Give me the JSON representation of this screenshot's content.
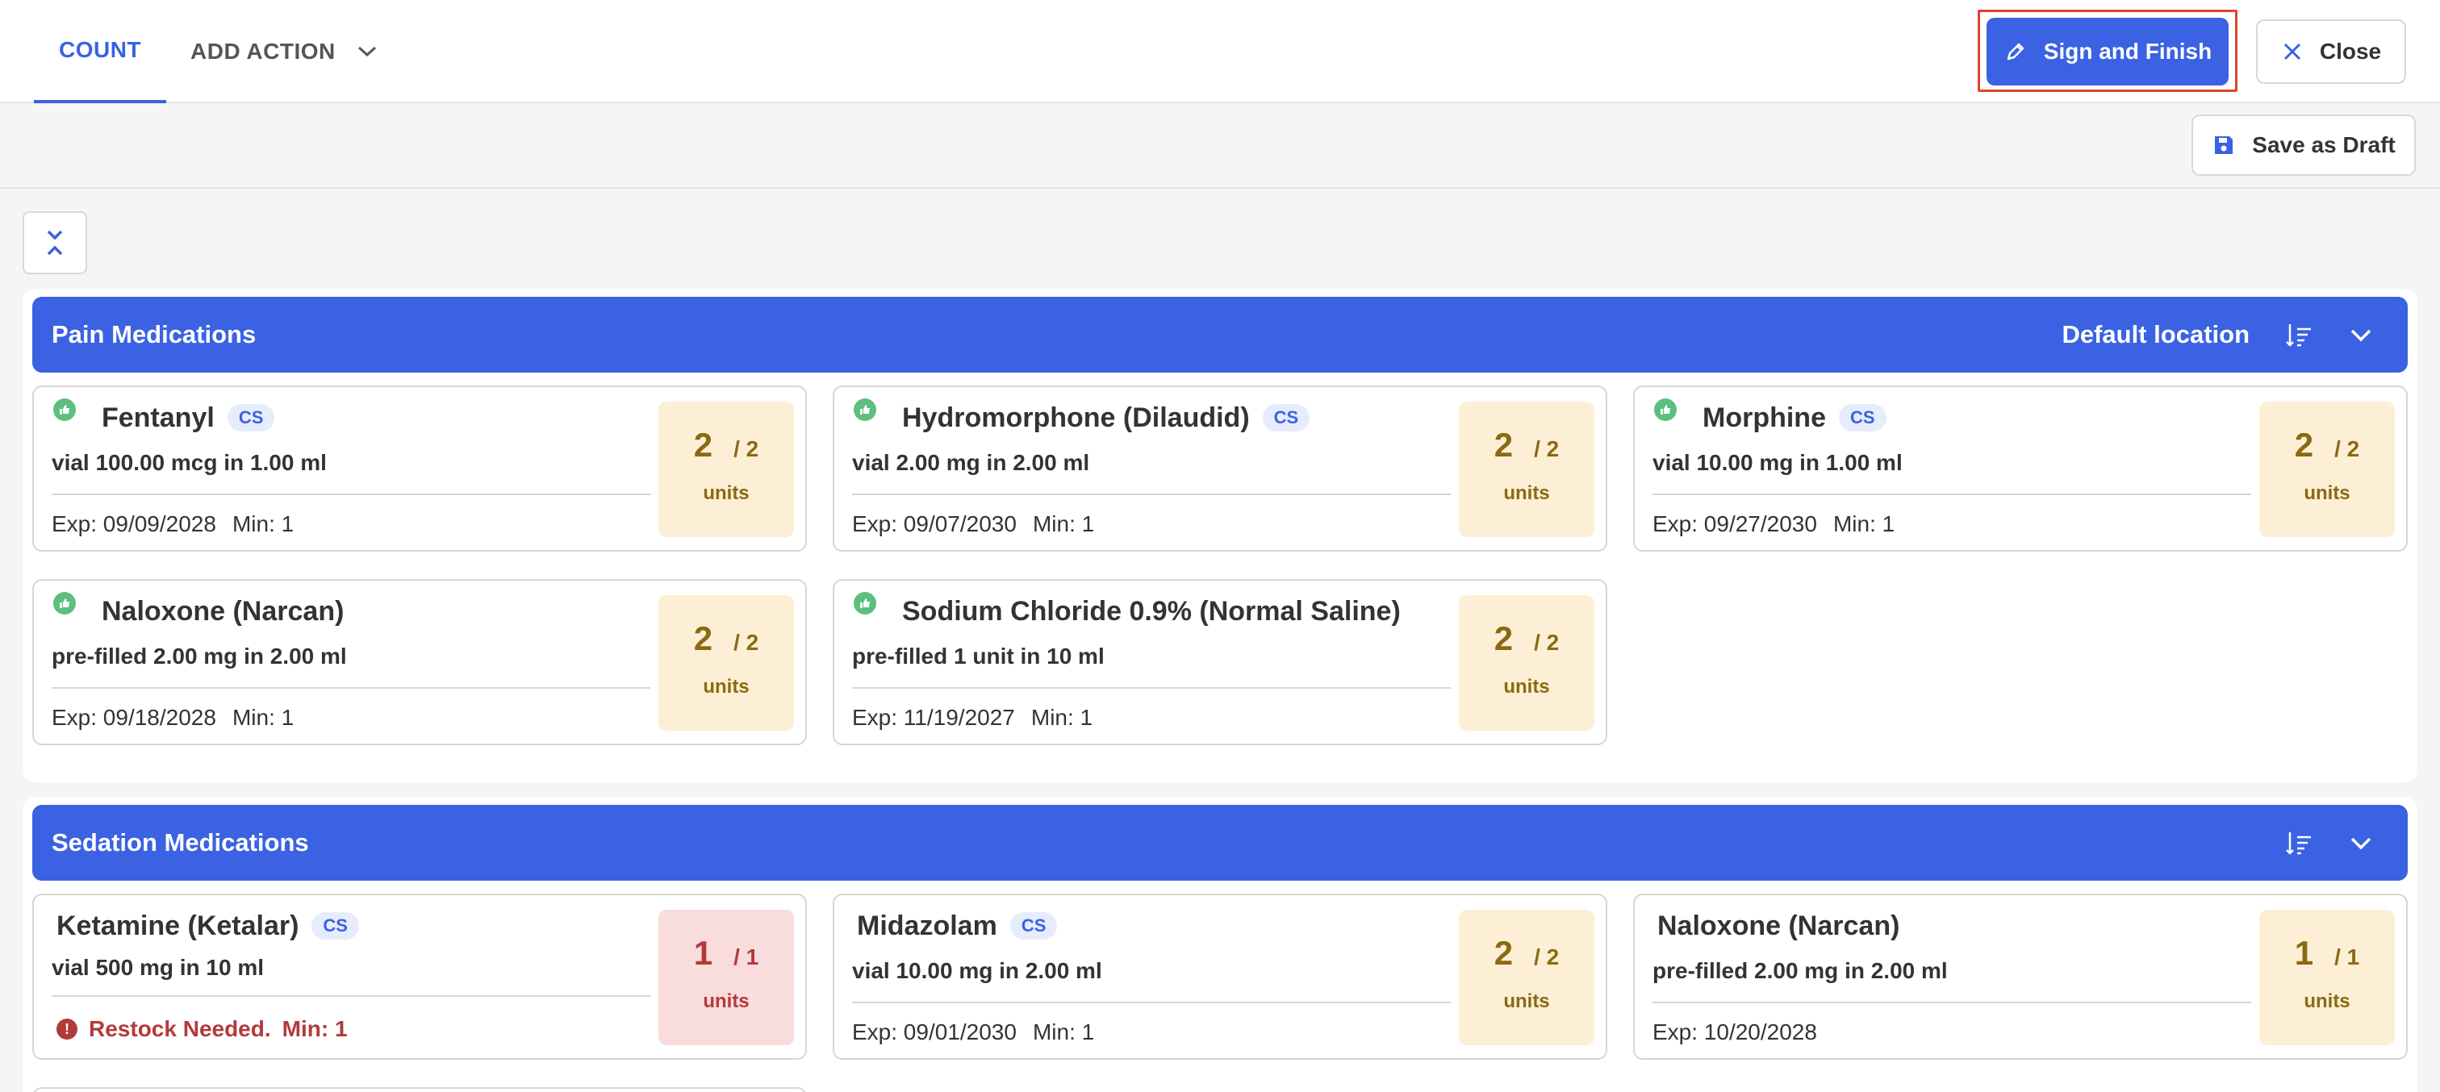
{
  "tabs": {
    "count": "COUNT",
    "add_action": "ADD ACTION"
  },
  "actions": {
    "sign_finish": "Sign and Finish",
    "close": "Close",
    "save_draft": "Save as Draft"
  },
  "colors": {
    "primary": "#3a62e2",
    "ok": "#5cbf7d",
    "low_stock": "#b33a3a",
    "highlight_outline": "#e0442c"
  },
  "sections": [
    {
      "title": "Pain Medications",
      "location": "Default location",
      "items": [
        {
          "name": "Fentanyl",
          "cs": "CS",
          "desc": "vial 100.00 mcg in 1.00 ml",
          "exp": "Exp: 09/09/2028",
          "min": "Min: 1",
          "count": "2",
          "total": "/ 2",
          "units": "units"
        },
        {
          "name": "Hydromorphone (Dilaudid)",
          "cs": "CS",
          "desc": "vial 2.00 mg in 2.00 ml",
          "exp": "Exp: 09/07/2030",
          "min": "Min: 1",
          "count": "2",
          "total": "/ 2",
          "units": "units"
        },
        {
          "name": "Morphine",
          "cs": "CS",
          "desc": "vial 10.00 mg in 1.00 ml",
          "exp": "Exp: 09/27/2030",
          "min": "Min: 1",
          "count": "2",
          "total": "/ 2",
          "units": "units"
        },
        {
          "name": "Naloxone (Narcan)",
          "desc": "pre-filled 2.00 mg in 2.00 ml",
          "exp": "Exp: 09/18/2028",
          "min": "Min: 1",
          "count": "2",
          "total": "/ 2",
          "units": "units"
        },
        {
          "name": "Sodium Chloride 0.9% (Normal Saline)",
          "desc": "pre-filled 1 unit in 10 ml",
          "exp": "Exp: 11/19/2027",
          "min": "Min: 1",
          "count": "2",
          "total": "/ 2",
          "units": "units"
        }
      ]
    },
    {
      "title": "Sedation Medications",
      "items": [
        {
          "name": "Ketamine (Ketalar)",
          "cs": "CS",
          "desc": "vial 500 mg in 10 ml",
          "restock": "Restock Needed.",
          "min": "Min: 1",
          "count": "1",
          "total": "/ 1",
          "units": "units"
        },
        {
          "name": "Midazolam",
          "cs": "CS",
          "desc": "vial 10.00 mg in 2.00 ml",
          "exp": "Exp: 09/01/2030",
          "min": "Min: 1",
          "count": "2",
          "total": "/ 2",
          "units": "units"
        },
        {
          "name": "Naloxone (Narcan)",
          "desc": "pre-filled 2.00 mg in 2.00 ml",
          "exp": "Exp: 10/20/2028",
          "count": "1",
          "total": "/ 1",
          "units": "units"
        }
      ]
    }
  ]
}
